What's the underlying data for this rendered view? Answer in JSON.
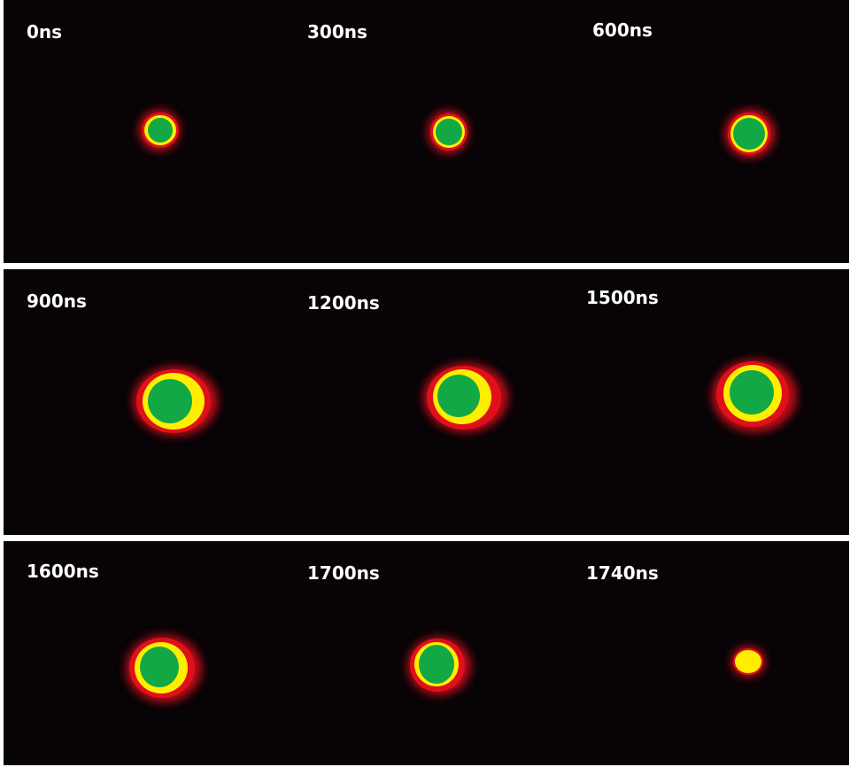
{
  "colors": {
    "background": "#080306",
    "separator": "#ffffff",
    "glow": "#e0101a",
    "ring": "#ffee00",
    "core": "#12a845",
    "label": "#ffffff"
  },
  "rows": [
    {
      "frames": [
        {
          "label": "0ns",
          "has_core": true
        },
        {
          "label": "300ns",
          "has_core": true
        },
        {
          "label": "600ns",
          "has_core": true
        }
      ]
    },
    {
      "frames": [
        {
          "label": "900ns",
          "has_core": true
        },
        {
          "label": "1200ns",
          "has_core": true
        },
        {
          "label": "1500ns",
          "has_core": true
        }
      ]
    },
    {
      "frames": [
        {
          "label": "1600ns",
          "has_core": true
        },
        {
          "label": "1700ns",
          "has_core": true
        },
        {
          "label": "1740ns",
          "has_core": false
        }
      ]
    }
  ]
}
